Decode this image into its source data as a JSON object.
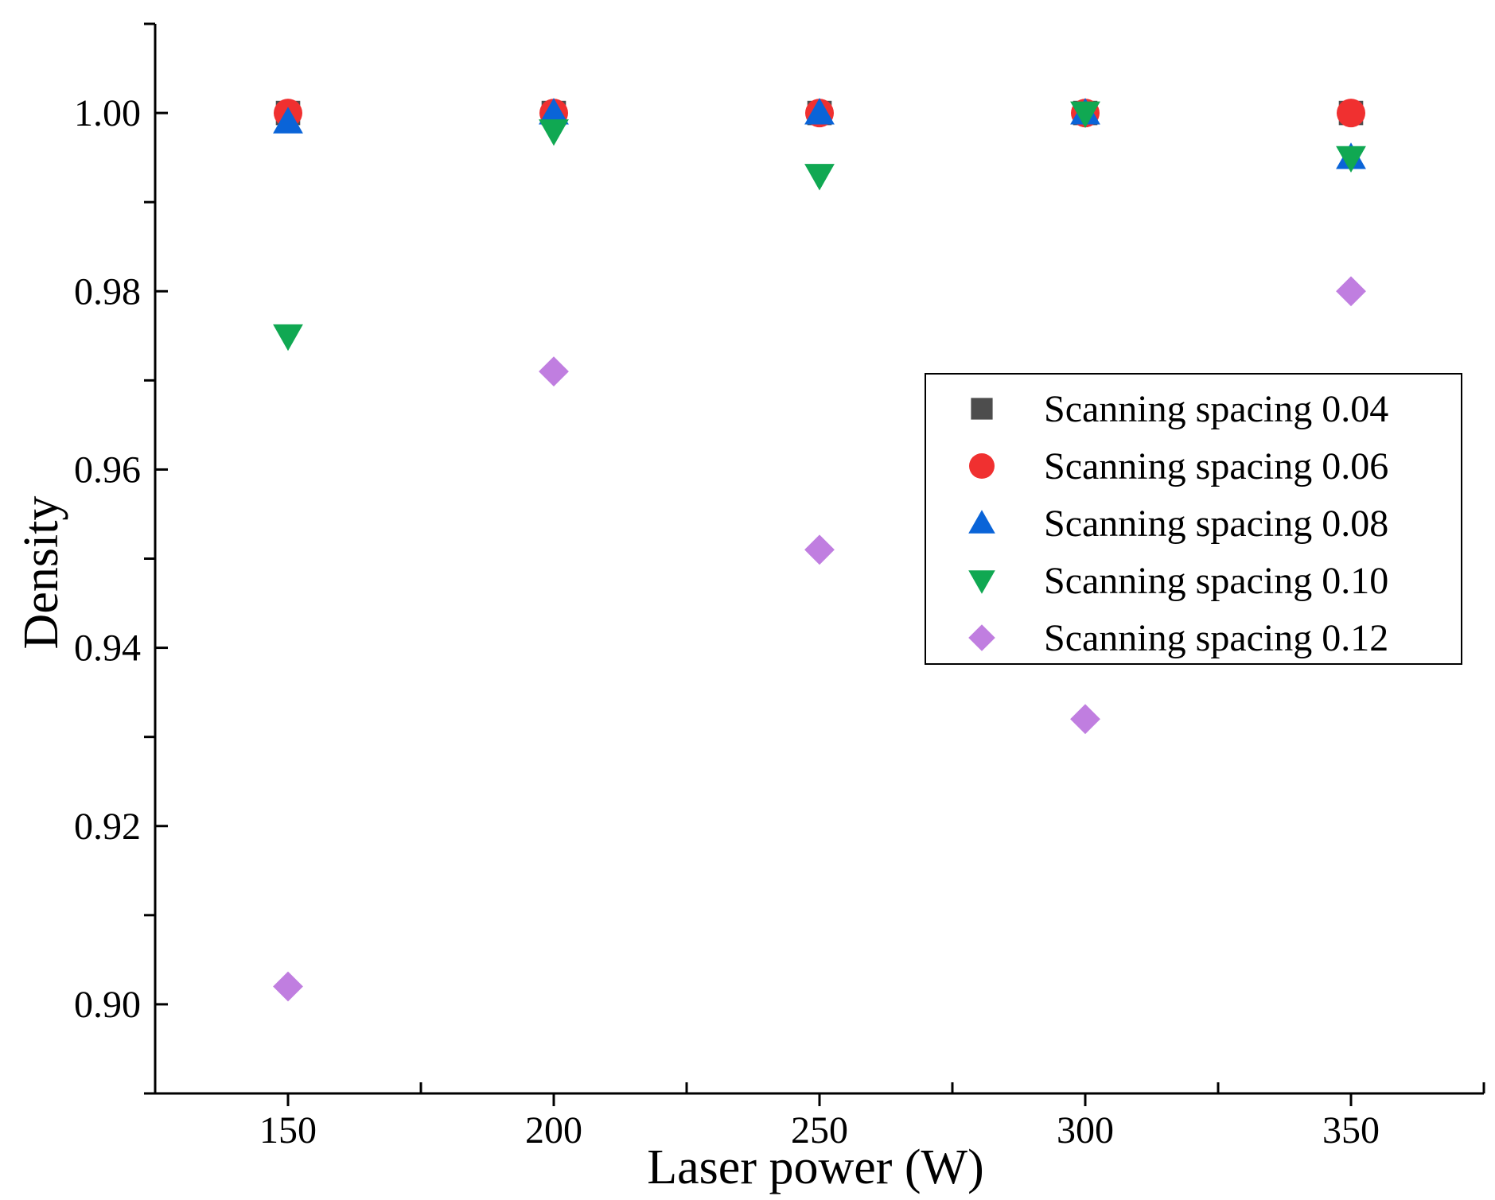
{
  "chart_data": {
    "type": "scatter",
    "title": "",
    "xlabel": "Laser power (W)",
    "ylabel": "Density",
    "xlim": [
      125,
      375
    ],
    "ylim": [
      0.89,
      1.01
    ],
    "x_ticks": [
      150,
      200,
      250,
      300,
      350
    ],
    "x_tick_labels": [
      "150",
      "200",
      "250",
      "300",
      "350"
    ],
    "y_ticks": [
      0.9,
      0.92,
      0.94,
      0.96,
      0.98,
      1.0
    ],
    "y_tick_labels": [
      "0.90",
      "0.92",
      "0.94",
      "0.96",
      "0.98",
      "1.00"
    ],
    "grid": false,
    "legend_position": "right",
    "x": [
      150,
      200,
      250,
      300,
      350
    ],
    "series": [
      {
        "name": "Scanning spacing 0.04",
        "marker": "square",
        "color": "#4d4d4d",
        "values": [
          1.0,
          1.0,
          1.0,
          1.0,
          1.0
        ]
      },
      {
        "name": "Scanning spacing 0.06",
        "marker": "circle",
        "color": "#f03030",
        "values": [
          1.0,
          1.0,
          1.0,
          1.0,
          1.0
        ]
      },
      {
        "name": "Scanning spacing 0.08",
        "marker": "triangle-up",
        "color": "#0a64d8",
        "values": [
          0.999,
          1.0,
          1.0,
          1.0,
          0.995
        ]
      },
      {
        "name": "Scanning spacing 0.10",
        "marker": "triangle-down",
        "color": "#10a852",
        "values": [
          0.975,
          0.998,
          0.993,
          1.0,
          0.995
        ]
      },
      {
        "name": "Scanning spacing 0.12",
        "marker": "diamond",
        "color": "#c07ee0",
        "values": [
          0.902,
          0.971,
          0.951,
          0.932,
          0.98
        ]
      }
    ]
  }
}
